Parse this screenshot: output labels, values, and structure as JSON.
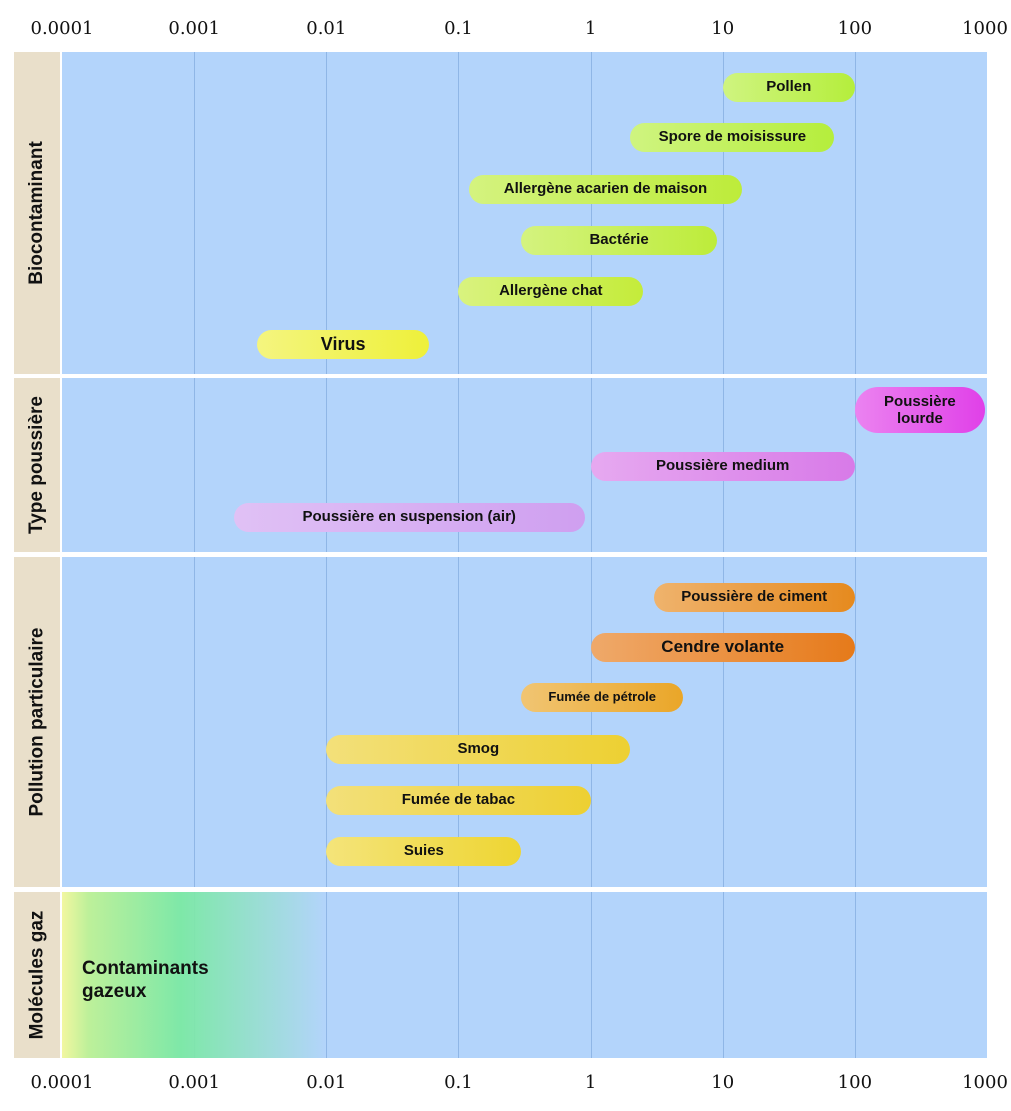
{
  "chart_data": {
    "type": "range-bar",
    "x_scale": "log",
    "xlim": [
      0.0001,
      1000
    ],
    "x_ticks": [
      "0.0001",
      "0.001",
      "0.01",
      "0.1",
      "1",
      "10",
      "100",
      "1000"
    ],
    "grid": true,
    "groups": [
      {
        "label": "Biocontaminant",
        "items": [
          {
            "label": "Pollen",
            "min": 10,
            "max": 100,
            "color": "#b5ee3c"
          },
          {
            "label": "Spore de moisissure",
            "min": 2,
            "max": 70,
            "color": "#b5ee3c"
          },
          {
            "label": "Allergène acarien de maison",
            "min": 0.12,
            "max": 14,
            "color": "#bdec3a"
          },
          {
            "label": "Bactérie",
            "min": 0.3,
            "max": 9,
            "color": "#bdec3a"
          },
          {
            "label": "Allergène chat",
            "min": 0.1,
            "max": 2.5,
            "color": "#c4ec3a"
          },
          {
            "label": "Virus",
            "min": 0.003,
            "max": 0.06,
            "color": "#eef03a"
          }
        ]
      },
      {
        "label": "Type poussière",
        "items": [
          {
            "label": "Poussière lourde",
            "min": 100,
            "max": 1000,
            "color": "#e040e8"
          },
          {
            "label": "Poussière medium",
            "min": 1,
            "max": 100,
            "color": "#d87ae8"
          },
          {
            "label": "Poussière en suspension (air)",
            "min": 0.002,
            "max": 0.9,
            "color": "#cf9ff0"
          }
        ]
      },
      {
        "label": "Pollution  particulaire",
        "items": [
          {
            "label": "Poussière de ciment",
            "min": 3,
            "max": 100,
            "color": "#e68a1e"
          },
          {
            "label": "Cendre volante",
            "min": 1,
            "max": 100,
            "color": "#e67a1a"
          },
          {
            "label": "Fumée de pétrole",
            "min": 0.3,
            "max": 5,
            "color": "#eaa628"
          },
          {
            "label": "Smog",
            "min": 0.01,
            "max": 2,
            "color": "#edd032"
          },
          {
            "label": "Fumée de tabac",
            "min": 0.01,
            "max": 1,
            "color": "#edd032"
          },
          {
            "label": "Suies",
            "min": 0.01,
            "max": 0.3,
            "color": "#eed532"
          }
        ]
      },
      {
        "label": "Molécules  gaz",
        "items": [
          {
            "label": "Contaminants gazeux",
            "min": 0.0001,
            "max": 0.01,
            "color": "#7ee8a8"
          }
        ]
      }
    ]
  }
}
